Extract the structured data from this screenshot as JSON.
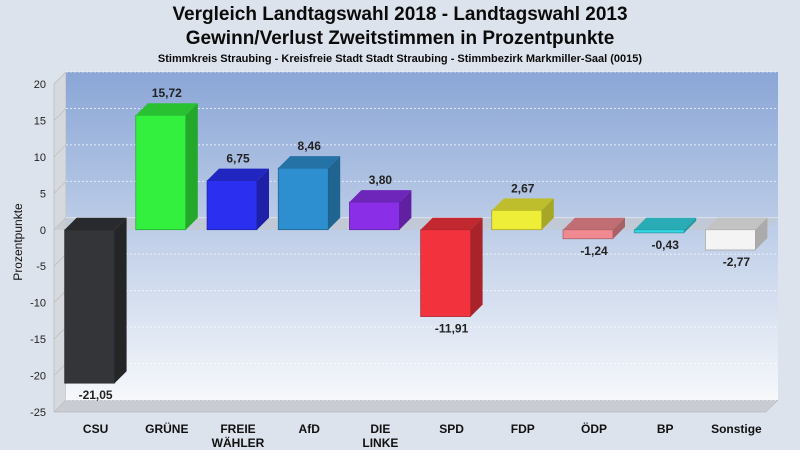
{
  "chart_data": {
    "type": "bar",
    "title": "Vergleich Landtagswahl 2018 - Landtagswahl 2013",
    "subtitle": "Gewinn/Verlust Zweitstimmen in Prozentpunkte",
    "caption": "Stimmkreis Straubing - Kreisfreie Stadt Stadt Straubing - Stimmbezirk Markmiller-Saal (0015)",
    "ylabel": "Prozentpunkte",
    "xlabel": "",
    "ylim": [
      -25,
      20
    ],
    "yticks": [
      20,
      15,
      10,
      5,
      0,
      -5,
      -10,
      -15,
      -20,
      -25
    ],
    "grid": true,
    "categories": [
      "CSU",
      "GRÜNE",
      "FREIE WÄHLER",
      "AfD",
      "DIE LINKE",
      "SPD",
      "FDP",
      "ÖDP",
      "BP",
      "Sonstige"
    ],
    "category_label_lines": [
      [
        "CSU"
      ],
      [
        "GRÜNE"
      ],
      [
        "FREIE",
        "WÄHLER"
      ],
      [
        "AfD"
      ],
      [
        "DIE",
        "LINKE"
      ],
      [
        "SPD"
      ],
      [
        "FDP"
      ],
      [
        "ÖDP"
      ],
      [
        "BP"
      ],
      [
        "Sonstige"
      ]
    ],
    "values": [
      -21.05,
      15.72,
      6.75,
      8.46,
      3.8,
      -11.91,
      2.67,
      -1.24,
      -0.43,
      -2.77
    ],
    "value_labels": [
      "-21,05",
      "15,72",
      "6,75",
      "8,46",
      "3,80",
      "-11,91",
      "2,67",
      "-1,24",
      "-0,43",
      "-2,77"
    ],
    "colors": [
      "#333538",
      "#33f03f",
      "#2b2ff0",
      "#2e8fd0",
      "#8a2ee8",
      "#f2323c",
      "#eeee38",
      "#f08a90",
      "#33d7e4",
      "#f4f4f4"
    ]
  }
}
